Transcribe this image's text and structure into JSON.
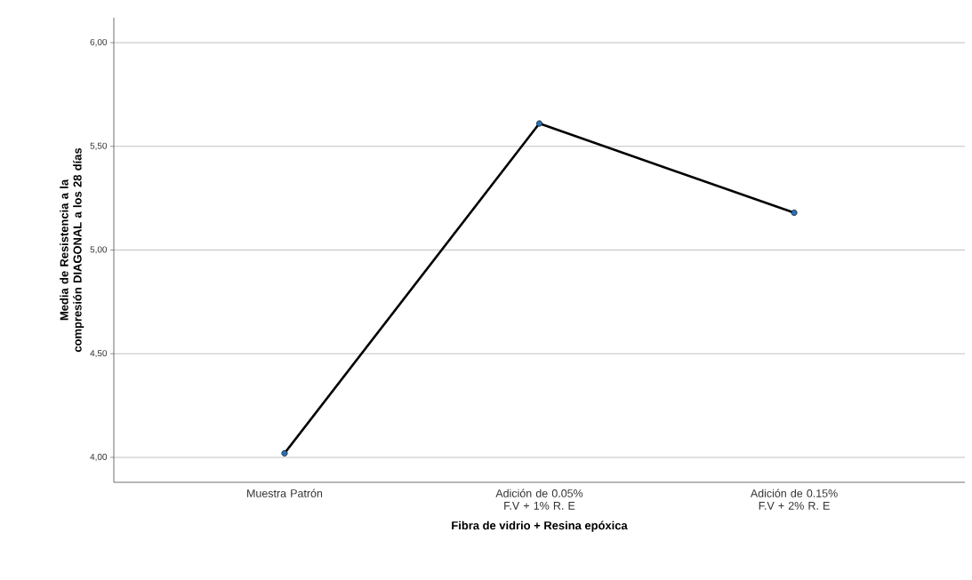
{
  "chart_data": {
    "type": "line",
    "categories": [
      "Muestra Patrón",
      "Adición de 0.05% F.V + 1% R. E",
      "Adición de 0.15% F.V + 2% R. E"
    ],
    "series": [
      {
        "color": "#000000",
        "values": [
          4.02,
          5.61,
          5.18
        ]
      }
    ],
    "xlabel": "Fibra de vidrio + Resina epóxica",
    "ylabel": "Media de Resistencia a la compresión DIAGONAL a los 28 días",
    "ylim": [
      3.88,
      6.12
    ],
    "yticks": [
      {
        "value": 4,
        "label": "4,00"
      },
      {
        "value": 4.5,
        "label": "4,50"
      },
      {
        "value": 5,
        "label": "5,00"
      },
      {
        "value": 5.5,
        "label": "5,50"
      },
      {
        "value": 6,
        "label": "6,00"
      }
    ],
    "grid": "y",
    "marker": "circle",
    "line_style": "solid"
  }
}
